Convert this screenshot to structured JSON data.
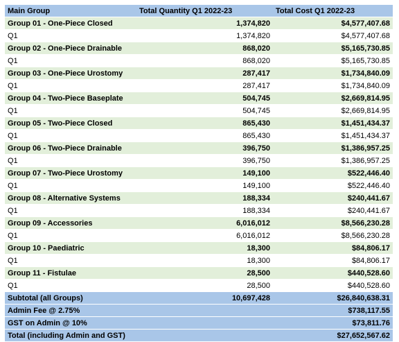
{
  "header": {
    "col1": "Main Group",
    "col2": "Total Quantity Q1 2022-23",
    "col3": "Total Cost Q1 2022-23"
  },
  "groups": [
    {
      "name": "Group 01 - One-Piece Closed",
      "qty": "1,374,820",
      "cost": "$4,577,407.68",
      "sub_label": "Q1",
      "sub_qty": "1,374,820",
      "sub_cost": "$4,577,407.68"
    },
    {
      "name": "Group 02 - One-Piece Drainable",
      "qty": "868,020",
      "cost": "$5,165,730.85",
      "sub_label": "Q1",
      "sub_qty": "868,020",
      "sub_cost": "$5,165,730.85"
    },
    {
      "name": "Group 03 - One-Piece Urostomy",
      "qty": "287,417",
      "cost": "$1,734,840.09",
      "sub_label": "Q1",
      "sub_qty": "287,417",
      "sub_cost": "$1,734,840.09"
    },
    {
      "name": "Group 04 - Two-Piece Baseplate",
      "qty": "504,745",
      "cost": "$2,669,814.95",
      "sub_label": "Q1",
      "sub_qty": "504,745",
      "sub_cost": "$2,669,814.95"
    },
    {
      "name": "Group 05 - Two-Piece Closed",
      "qty": "865,430",
      "cost": "$1,451,434.37",
      "sub_label": "Q1",
      "sub_qty": "865,430",
      "sub_cost": "$1,451,434.37"
    },
    {
      "name": "Group 06 - Two-Piece Drainable",
      "qty": "396,750",
      "cost": "$1,386,957.25",
      "sub_label": "Q1",
      "sub_qty": "396,750",
      "sub_cost": "$1,386,957.25"
    },
    {
      "name": "Group 07 - Two-Piece Urostomy",
      "qty": "149,100",
      "cost": "$522,446.40",
      "sub_label": "Q1",
      "sub_qty": "149,100",
      "sub_cost": "$522,446.40"
    },
    {
      "name": "Group 08 - Alternative Systems",
      "qty": "188,334",
      "cost": "$240,441.67",
      "sub_label": "Q1",
      "sub_qty": "188,334",
      "sub_cost": "$240,441.67"
    },
    {
      "name": "Group 09 - Accessories",
      "qty": "6,016,012",
      "cost": "$8,566,230.28",
      "sub_label": "Q1",
      "sub_qty": "6,016,012",
      "sub_cost": "$8,566,230.28"
    },
    {
      "name": "Group 10 - Paediatric",
      "qty": "18,300",
      "cost": "$84,806.17",
      "sub_label": "Q1",
      "sub_qty": "18,300",
      "sub_cost": "$84,806.17"
    },
    {
      "name": "Group 11 - Fistulae",
      "qty": "28,500",
      "cost": "$440,528.60",
      "sub_label": "Q1",
      "sub_qty": "28,500",
      "sub_cost": "$440,528.60"
    }
  ],
  "totals": [
    {
      "label": "Subtotal (all Groups)",
      "qty": "10,697,428",
      "cost": "$26,840,638.31"
    },
    {
      "label": "Admin Fee @ 2.75%",
      "qty": "",
      "cost": "$738,117.55"
    },
    {
      "label": "GST on Admin @ 10%",
      "qty": "",
      "cost": "$73,811.76"
    },
    {
      "label": "Total (including Admin and GST)",
      "qty": "",
      "cost": "$27,652,567.62"
    }
  ]
}
